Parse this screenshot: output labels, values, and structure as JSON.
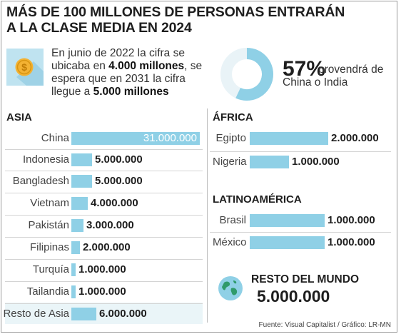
{
  "title_line1": "MÁS DE 100 MILLONES DE PERSONAS ENTRARÁN",
  "title_line2": "A LA CLASE MEDIA EN 2024",
  "intro": {
    "p1": "En junio de 2022 la cifra se ubicaba en ",
    "b1": "4.000 millones",
    "p2": ", se espera que en 2031 la cifra llegue a ",
    "b2": "5.000 millones"
  },
  "pct": {
    "value": "57%",
    "text1": "provendrá de",
    "text2": "China o India",
    "fraction": 0.57
  },
  "source": "Fuente: Visual Capitalist / Gráfico: LR-MN",
  "icons": {
    "coin": "dollar-coin-icon",
    "globe": "globe-icon"
  },
  "colors": {
    "bar": "#8fd0e6",
    "coin_bg": "#bfe3f0",
    "coin": "#f3b233",
    "donut_bg": "#e9f3f7"
  },
  "chart_data": [
    {
      "type": "bar",
      "title": "ASIA",
      "categories": [
        "China",
        "Indonesia",
        "Bangladesh",
        "Vietnam",
        "Pakistán",
        "Filipinas",
        "Turquía",
        "Tailandia",
        "Resto de Asia"
      ],
      "values": [
        31000000,
        5000000,
        5000000,
        4000000,
        3000000,
        2000000,
        1000000,
        1000000,
        6000000
      ],
      "labels": [
        "31.000.000",
        "5.000.000",
        "5.000.000",
        "4.000.000",
        "3.000.000",
        "2.000.000",
        "1.000.000",
        "1.000.000",
        "6.000.000"
      ]
    },
    {
      "type": "bar",
      "title": "ÁFRICA",
      "categories": [
        "Egipto",
        "Nigeria"
      ],
      "values": [
        2000000,
        1000000
      ],
      "labels": [
        "2.000.000",
        "1.000.000"
      ]
    },
    {
      "type": "bar",
      "title": "LATINOAMÉRICA",
      "categories": [
        "Brasil",
        "México"
      ],
      "values": [
        1000000,
        1000000
      ],
      "labels": [
        "1.000.000",
        "1.000.000"
      ]
    },
    {
      "type": "table",
      "title": "RESTO DEL MUNDO",
      "values": [
        5000000
      ],
      "labels": [
        "5.000.000"
      ]
    }
  ]
}
